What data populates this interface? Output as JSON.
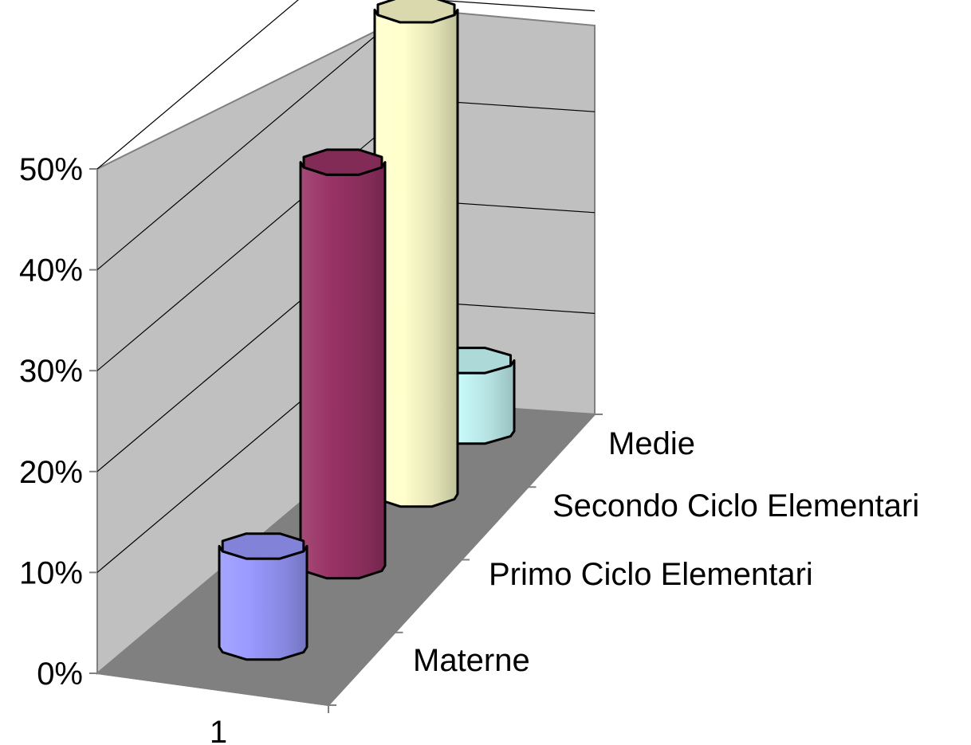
{
  "chart_data": {
    "type": "bar",
    "variant": "3d-cylinder",
    "x_categories": [
      "1"
    ],
    "depth_categories": [
      "Materne",
      "Primo Ciclo Elementari",
      "Secondo Ciclo Elementari",
      "Medie"
    ],
    "series": [
      {
        "name": "Materne",
        "values": [
          10
        ],
        "color": "#9999FF"
      },
      {
        "name": "Primo Ciclo Elementari",
        "values": [
          40
        ],
        "color": "#993366"
      },
      {
        "name": "Secondo Ciclo Elementari",
        "values": [
          48
        ],
        "color": "#FFFFCC"
      },
      {
        "name": "Medie",
        "values": [
          7
        ],
        "color": "#CCFFFF"
      }
    ],
    "y_ticks": [
      "0%",
      "10%",
      "20%",
      "30%",
      "40%",
      "50%"
    ],
    "y_tick_values": [
      0,
      10,
      20,
      30,
      40,
      50
    ],
    "ylim": [
      0,
      55
    ],
    "grid": true,
    "title": "",
    "xlabel": "",
    "ylabel": ""
  }
}
